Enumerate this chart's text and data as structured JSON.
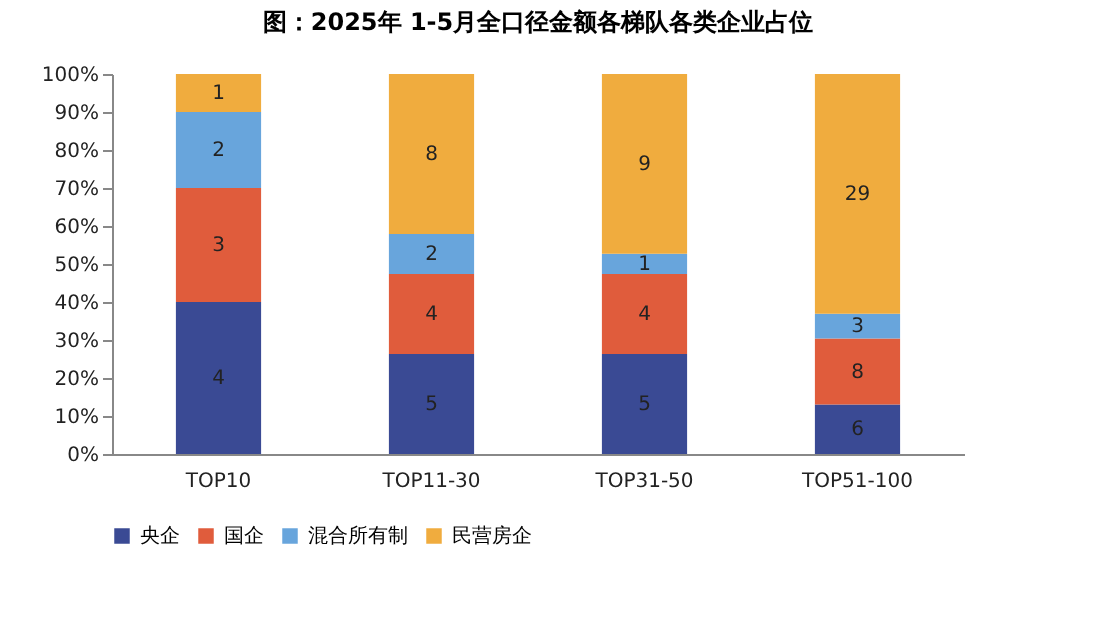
{
  "chart_data": {
    "type": "bar",
    "stacked": true,
    "title": "图：2025年 1-5月全口径金额各梯队各类企业占位",
    "categories": [
      "TOP10",
      "TOP11-30",
      "TOP31-50",
      "TOP51-100"
    ],
    "series": [
      {
        "name": "央企",
        "color": "#3a4a94",
        "values": [
          40,
          26.3,
          26.3,
          13.0
        ]
      },
      {
        "name": "国企",
        "color": "#e05c3c",
        "values": [
          30,
          21.1,
          21.1,
          17.4
        ]
      },
      {
        "name": "混合所有制",
        "color": "#68a5dc",
        "values": [
          20,
          10.5,
          5.3,
          6.5
        ]
      },
      {
        "name": "民营房企",
        "color": "#f0ac3e",
        "values": [
          10,
          42.1,
          47.3,
          63.1
        ]
      }
    ],
    "annotations": [
      "4",
      "5",
      "5",
      "6",
      "3",
      "4",
      "4",
      "8",
      "2",
      "2",
      "1",
      "3",
      "1",
      "8",
      "9",
      "29"
    ],
    "ylim": [
      0,
      100
    ],
    "yticks": [
      {
        "value": 0,
        "label": "0%"
      },
      {
        "value": 10,
        "label": "10%"
      },
      {
        "value": 20,
        "label": "20%"
      },
      {
        "value": 30,
        "label": "30%"
      },
      {
        "value": 40,
        "label": "40%"
      },
      {
        "value": 50,
        "label": "50%"
      },
      {
        "value": 60,
        "label": "60%"
      },
      {
        "value": 70,
        "label": "70%"
      },
      {
        "value": 80,
        "label": "80%"
      },
      {
        "value": 90,
        "label": "90%"
      },
      {
        "value": 100,
        "label": "100%"
      }
    ],
    "grid": false,
    "legend": "bottom"
  }
}
